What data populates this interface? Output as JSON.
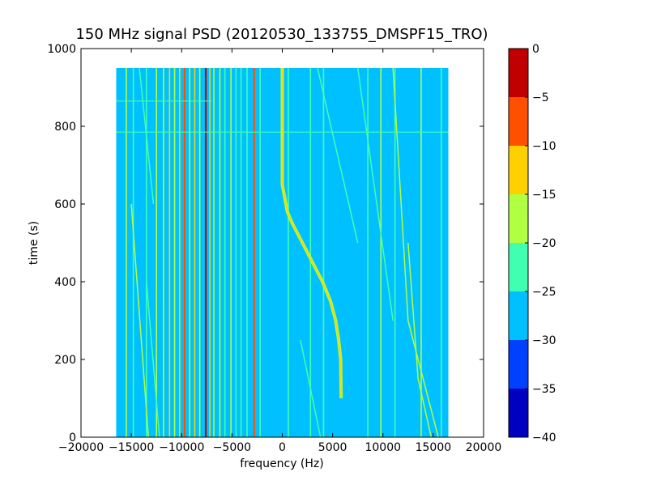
{
  "chart_data": {
    "type": "heatmap",
    "title": "150 MHz signal PSD (20120530_133755_DMSPF15_TRO)",
    "xlabel": "frequency (Hz)",
    "ylabel": "time (s)",
    "xlim": [
      -20000,
      20000
    ],
    "ylim": [
      0,
      1000
    ],
    "xticks": [
      -20000,
      -15000,
      -10000,
      -5000,
      0,
      5000,
      10000,
      15000,
      20000
    ],
    "xtick_labels": [
      "−20000",
      "−15000",
      "−10000",
      "−5000",
      "0",
      "5000",
      "10000",
      "15000",
      "20000"
    ],
    "yticks": [
      0,
      200,
      400,
      600,
      800,
      1000
    ],
    "ytick_labels": [
      "0",
      "200",
      "400",
      "600",
      "800",
      "1000"
    ],
    "data_extent": {
      "x": [
        -16500,
        16500
      ],
      "y": [
        0,
        950
      ]
    },
    "background_level": [
      -30,
      -25
    ],
    "colorbar": {
      "levels": [
        -40,
        -35,
        -30,
        -25,
        -20,
        -15,
        -10,
        -5,
        0
      ],
      "tick_labels": [
        "−40",
        "−35",
        "−30",
        "−25",
        "−20",
        "−15",
        "−10",
        "−5",
        "0"
      ],
      "colors": [
        "#0000c0",
        "#0040ff",
        "#00c0ff",
        "#40ffb0",
        "#b0ff40",
        "#ffd000",
        "#ff5000",
        "#c00000"
      ]
    },
    "doppler_trace": {
      "level": [
        -15,
        -10
      ],
      "points": [
        [
          0,
          950
        ],
        [
          0,
          800
        ],
        [
          0,
          700
        ],
        [
          0,
          650
        ],
        [
          500,
          580
        ],
        [
          1000,
          550
        ],
        [
          2000,
          500
        ],
        [
          3000,
          450
        ],
        [
          4000,
          400
        ],
        [
          4800,
          350
        ],
        [
          5300,
          300
        ],
        [
          5600,
          250
        ],
        [
          5800,
          200
        ],
        [
          5850,
          100
        ]
      ]
    },
    "steady_lines": [
      {
        "f": -15500,
        "level": [
          -20,
          -15
        ]
      },
      {
        "f": -14800,
        "level": [
          -25,
          -20
        ]
      },
      {
        "f": -13500,
        "level": [
          -25,
          -20
        ]
      },
      {
        "f": -12500,
        "level": [
          -20,
          -15
        ]
      },
      {
        "f": -11800,
        "level": [
          -20,
          -15
        ]
      },
      {
        "f": -11200,
        "level": [
          -15,
          -10
        ]
      },
      {
        "f": -10700,
        "level": [
          -20,
          -15
        ]
      },
      {
        "f": -10200,
        "level": [
          -15,
          -10
        ]
      },
      {
        "f": -9700,
        "level": [
          -10,
          -5
        ]
      },
      {
        "f": -9200,
        "level": [
          -20,
          -15
        ]
      },
      {
        "f": -8700,
        "level": [
          -15,
          -10
        ]
      },
      {
        "f": -8200,
        "level": [
          -20,
          -15
        ]
      },
      {
        "f": -7600,
        "level": [
          -5,
          0
        ]
      },
      {
        "f": -7200,
        "level": [
          -15,
          -10
        ]
      },
      {
        "f": -6800,
        "level": [
          -20,
          -15
        ]
      },
      {
        "f": -6200,
        "level": [
          -20,
          -15
        ]
      },
      {
        "f": -5700,
        "level": [
          -25,
          -20
        ]
      },
      {
        "f": -5100,
        "level": [
          -20,
          -15
        ]
      },
      {
        "f": -4600,
        "level": [
          -25,
          -20
        ]
      },
      {
        "f": -4100,
        "level": [
          -25,
          -20
        ]
      },
      {
        "f": -3500,
        "level": [
          -25,
          -20
        ]
      },
      {
        "f": -2800,
        "level": [
          -10,
          -5
        ]
      },
      {
        "f": -2200,
        "level": [
          -25,
          -20
        ]
      },
      {
        "f": 600,
        "level": [
          -25,
          -20
        ]
      },
      {
        "f": 2800,
        "level": [
          -25,
          -20
        ]
      },
      {
        "f": 4100,
        "level": [
          -25,
          -20
        ]
      },
      {
        "f": 8500,
        "level": [
          -25,
          -20
        ]
      },
      {
        "f": 9800,
        "level": [
          -20,
          -15
        ]
      },
      {
        "f": 11200,
        "level": [
          -25,
          -20
        ]
      },
      {
        "f": 13800,
        "level": [
          -20,
          -15
        ]
      },
      {
        "f": 15800,
        "level": [
          -25,
          -20
        ]
      }
    ],
    "drifting_lines": [
      {
        "points": [
          [
            -15000,
            600
          ],
          [
            -13300,
            0
          ]
        ],
        "level": [
          -20,
          -15
        ]
      },
      {
        "points": [
          [
            -14200,
            950
          ],
          [
            -12800,
            600
          ]
        ],
        "level": [
          -25,
          -20
        ]
      },
      {
        "points": [
          [
            3500,
            950
          ],
          [
            7500,
            500
          ]
        ],
        "level": [
          -25,
          -20
        ]
      },
      {
        "points": [
          [
            7500,
            950
          ],
          [
            11000,
            300
          ]
        ],
        "level": [
          -25,
          -20
        ]
      },
      {
        "points": [
          [
            11000,
            950
          ],
          [
            12500,
            300
          ],
          [
            15500,
            0
          ]
        ],
        "level": [
          -20,
          -15
        ]
      },
      {
        "points": [
          [
            12500,
            500
          ],
          [
            13500,
            150
          ],
          [
            14800,
            0
          ]
        ],
        "level": [
          -20,
          -15
        ]
      },
      {
        "points": [
          [
            -13500,
            400
          ],
          [
            -12200,
            0
          ]
        ],
        "level": [
          -25,
          -20
        ]
      },
      {
        "points": [
          [
            1800,
            250
          ],
          [
            3800,
            0
          ]
        ],
        "level": [
          -25,
          -20
        ]
      }
    ],
    "horizontal_features": [
      {
        "t": 785,
        "x": [
          -16500,
          16500
        ],
        "level": [
          -25,
          -20
        ]
      },
      {
        "t": 865,
        "x": [
          -16500,
          -7000
        ],
        "level": [
          -25,
          -20
        ]
      }
    ]
  }
}
